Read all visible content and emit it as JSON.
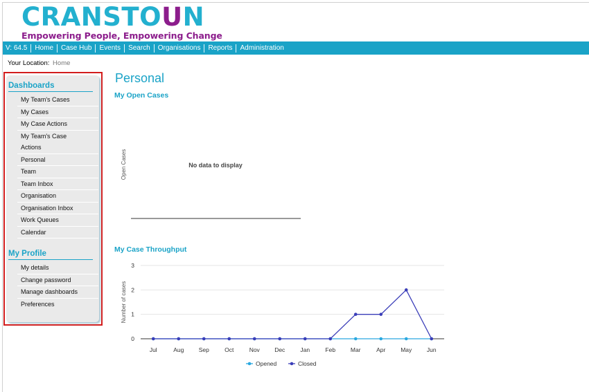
{
  "logo": {
    "word_main": "CRANSTO",
    "word_u": "U",
    "word_end": "N",
    "tagline": "Empowering People, Empowering Change"
  },
  "nav": {
    "version": "V: 64.5",
    "items": [
      "Home",
      "Case Hub",
      "Events",
      "Search",
      "Organisations",
      "Reports",
      "Administration"
    ]
  },
  "breadcrumb": {
    "label": "Your Location:",
    "value": "Home"
  },
  "sidebar": {
    "dashboards_heading": "Dashboards",
    "dashboards": [
      "My Team's Cases",
      "My Cases",
      "My Case Actions",
      "My Team's Case",
      "Actions",
      "Personal",
      "Team",
      "Team Inbox",
      "Organisation",
      "Organisation Inbox",
      "Work Queues",
      "Calendar"
    ],
    "profile_heading": "My Profile",
    "profile": [
      "My details",
      "Change password",
      "Manage dashboards",
      "Preferences"
    ]
  },
  "page_title": "Personal",
  "open_cases": {
    "title": "My Open Cases",
    "ylabel": "Open Cases",
    "empty_message": "No data to display"
  },
  "throughput": {
    "title": "My Case Throughput"
  },
  "colors": {
    "accent": "#1aa3c7",
    "brand_purple": "#8c1d8c",
    "highlight": "#d21c1c",
    "opened": "#29a8e0",
    "closed": "#3a3db8"
  },
  "chart_data": {
    "type": "line",
    "ylabel": "Number of cases",
    "categories": [
      "Jul",
      "Aug",
      "Sep",
      "Oct",
      "Nov",
      "Dec",
      "Jan",
      "Feb",
      "Mar",
      "Apr",
      "May",
      "Jun"
    ],
    "ylim": [
      0,
      3
    ],
    "yticks": [
      0,
      1,
      2,
      3
    ],
    "series": [
      {
        "name": "Opened",
        "values": [
          0,
          0,
          0,
          0,
          0,
          0,
          0,
          0,
          0,
          0,
          0,
          0
        ]
      },
      {
        "name": "Closed",
        "values": [
          0,
          0,
          0,
          0,
          0,
          0,
          0,
          0,
          1,
          1,
          2,
          0
        ]
      }
    ],
    "legend": "bottom",
    "grid": true
  }
}
